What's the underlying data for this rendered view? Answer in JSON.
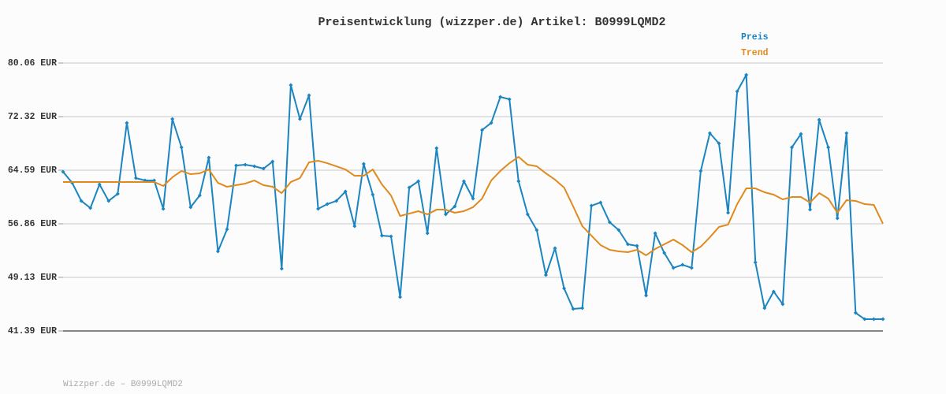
{
  "chart_data": {
    "type": "line",
    "title": "Preisentwicklung (wizzper.de) Artikel: B0999LQMD2",
    "credit": "Wizzper.de – B0999LQMD2",
    "ylim": [
      41.39,
      80.06
    ],
    "yticks": [
      {
        "value": 41.39,
        "label": "41.39 EUR"
      },
      {
        "value": 49.13,
        "label": "49.13 EUR"
      },
      {
        "value": 56.86,
        "label": "56.86 EUR"
      },
      {
        "value": 64.59,
        "label": "64.59 EUR"
      },
      {
        "value": 72.32,
        "label": "72.32 EUR"
      },
      {
        "value": 80.06,
        "label": "80.06 EUR"
      }
    ],
    "grid": true,
    "legend": "top-right",
    "series": [
      {
        "name": "Preis",
        "color": "#1a85c0",
        "markers": true,
        "values": [
          64.36,
          62.77,
          60.16,
          59.13,
          62.54,
          60.16,
          61.18,
          71.42,
          63.45,
          63.11,
          63.11,
          59.02,
          71.98,
          67.89,
          59.25,
          60.95,
          66.41,
          52.88,
          56.06,
          65.27,
          65.39,
          65.16,
          64.82,
          65.84,
          50.37,
          76.88,
          71.98,
          75.4,
          59.02,
          59.7,
          60.16,
          61.52,
          56.52,
          65.5,
          61.07,
          55.15,
          55.04,
          46.28,
          62.09,
          63.0,
          55.49,
          67.78,
          58.22,
          59.36,
          63.0,
          60.5,
          70.39,
          71.42,
          75.17,
          74.83,
          63.0,
          58.22,
          55.95,
          49.46,
          53.33,
          47.53,
          44.57,
          44.69,
          59.47,
          59.93,
          57.08,
          55.95,
          53.9,
          53.67,
          46.51,
          55.49,
          52.65,
          50.49,
          50.94,
          50.49,
          64.48,
          69.94,
          68.46,
          58.45,
          75.97,
          78.35,
          51.28,
          44.69,
          47.08,
          45.26,
          67.89,
          69.82,
          58.9,
          71.87,
          67.89,
          57.65,
          69.94,
          44.0,
          43.09,
          43.09,
          43.09
        ]
      },
      {
        "name": "Trend",
        "color": "#e08a1e",
        "markers": false,
        "values": [
          62.89,
          62.89,
          62.89,
          62.89,
          62.89,
          62.89,
          62.89,
          62.89,
          62.89,
          62.89,
          62.89,
          62.32,
          63.57,
          64.48,
          64.02,
          64.14,
          64.7,
          62.77,
          62.2,
          62.43,
          62.66,
          63.11,
          62.43,
          62.2,
          61.29,
          62.89,
          63.45,
          65.73,
          65.96,
          65.61,
          65.16,
          64.7,
          63.79,
          63.79,
          64.7,
          62.54,
          60.95,
          57.99,
          58.33,
          58.68,
          58.22,
          58.9,
          58.9,
          58.45,
          58.68,
          59.25,
          60.5,
          63.11,
          64.48,
          65.61,
          66.52,
          65.39,
          65.16,
          64.14,
          63.23,
          62.09,
          59.36,
          56.52,
          55.15,
          53.79,
          53.1,
          52.88,
          52.76,
          53.1,
          52.31,
          53.22,
          53.9,
          54.58,
          53.79,
          52.76,
          53.56,
          54.92,
          56.4,
          56.74,
          59.7,
          61.97,
          61.97,
          61.41,
          61.07,
          60.38,
          60.72,
          60.72,
          59.93,
          61.29,
          60.5,
          58.45,
          60.27,
          60.16,
          59.7,
          59.59,
          56.86
        ]
      }
    ]
  }
}
